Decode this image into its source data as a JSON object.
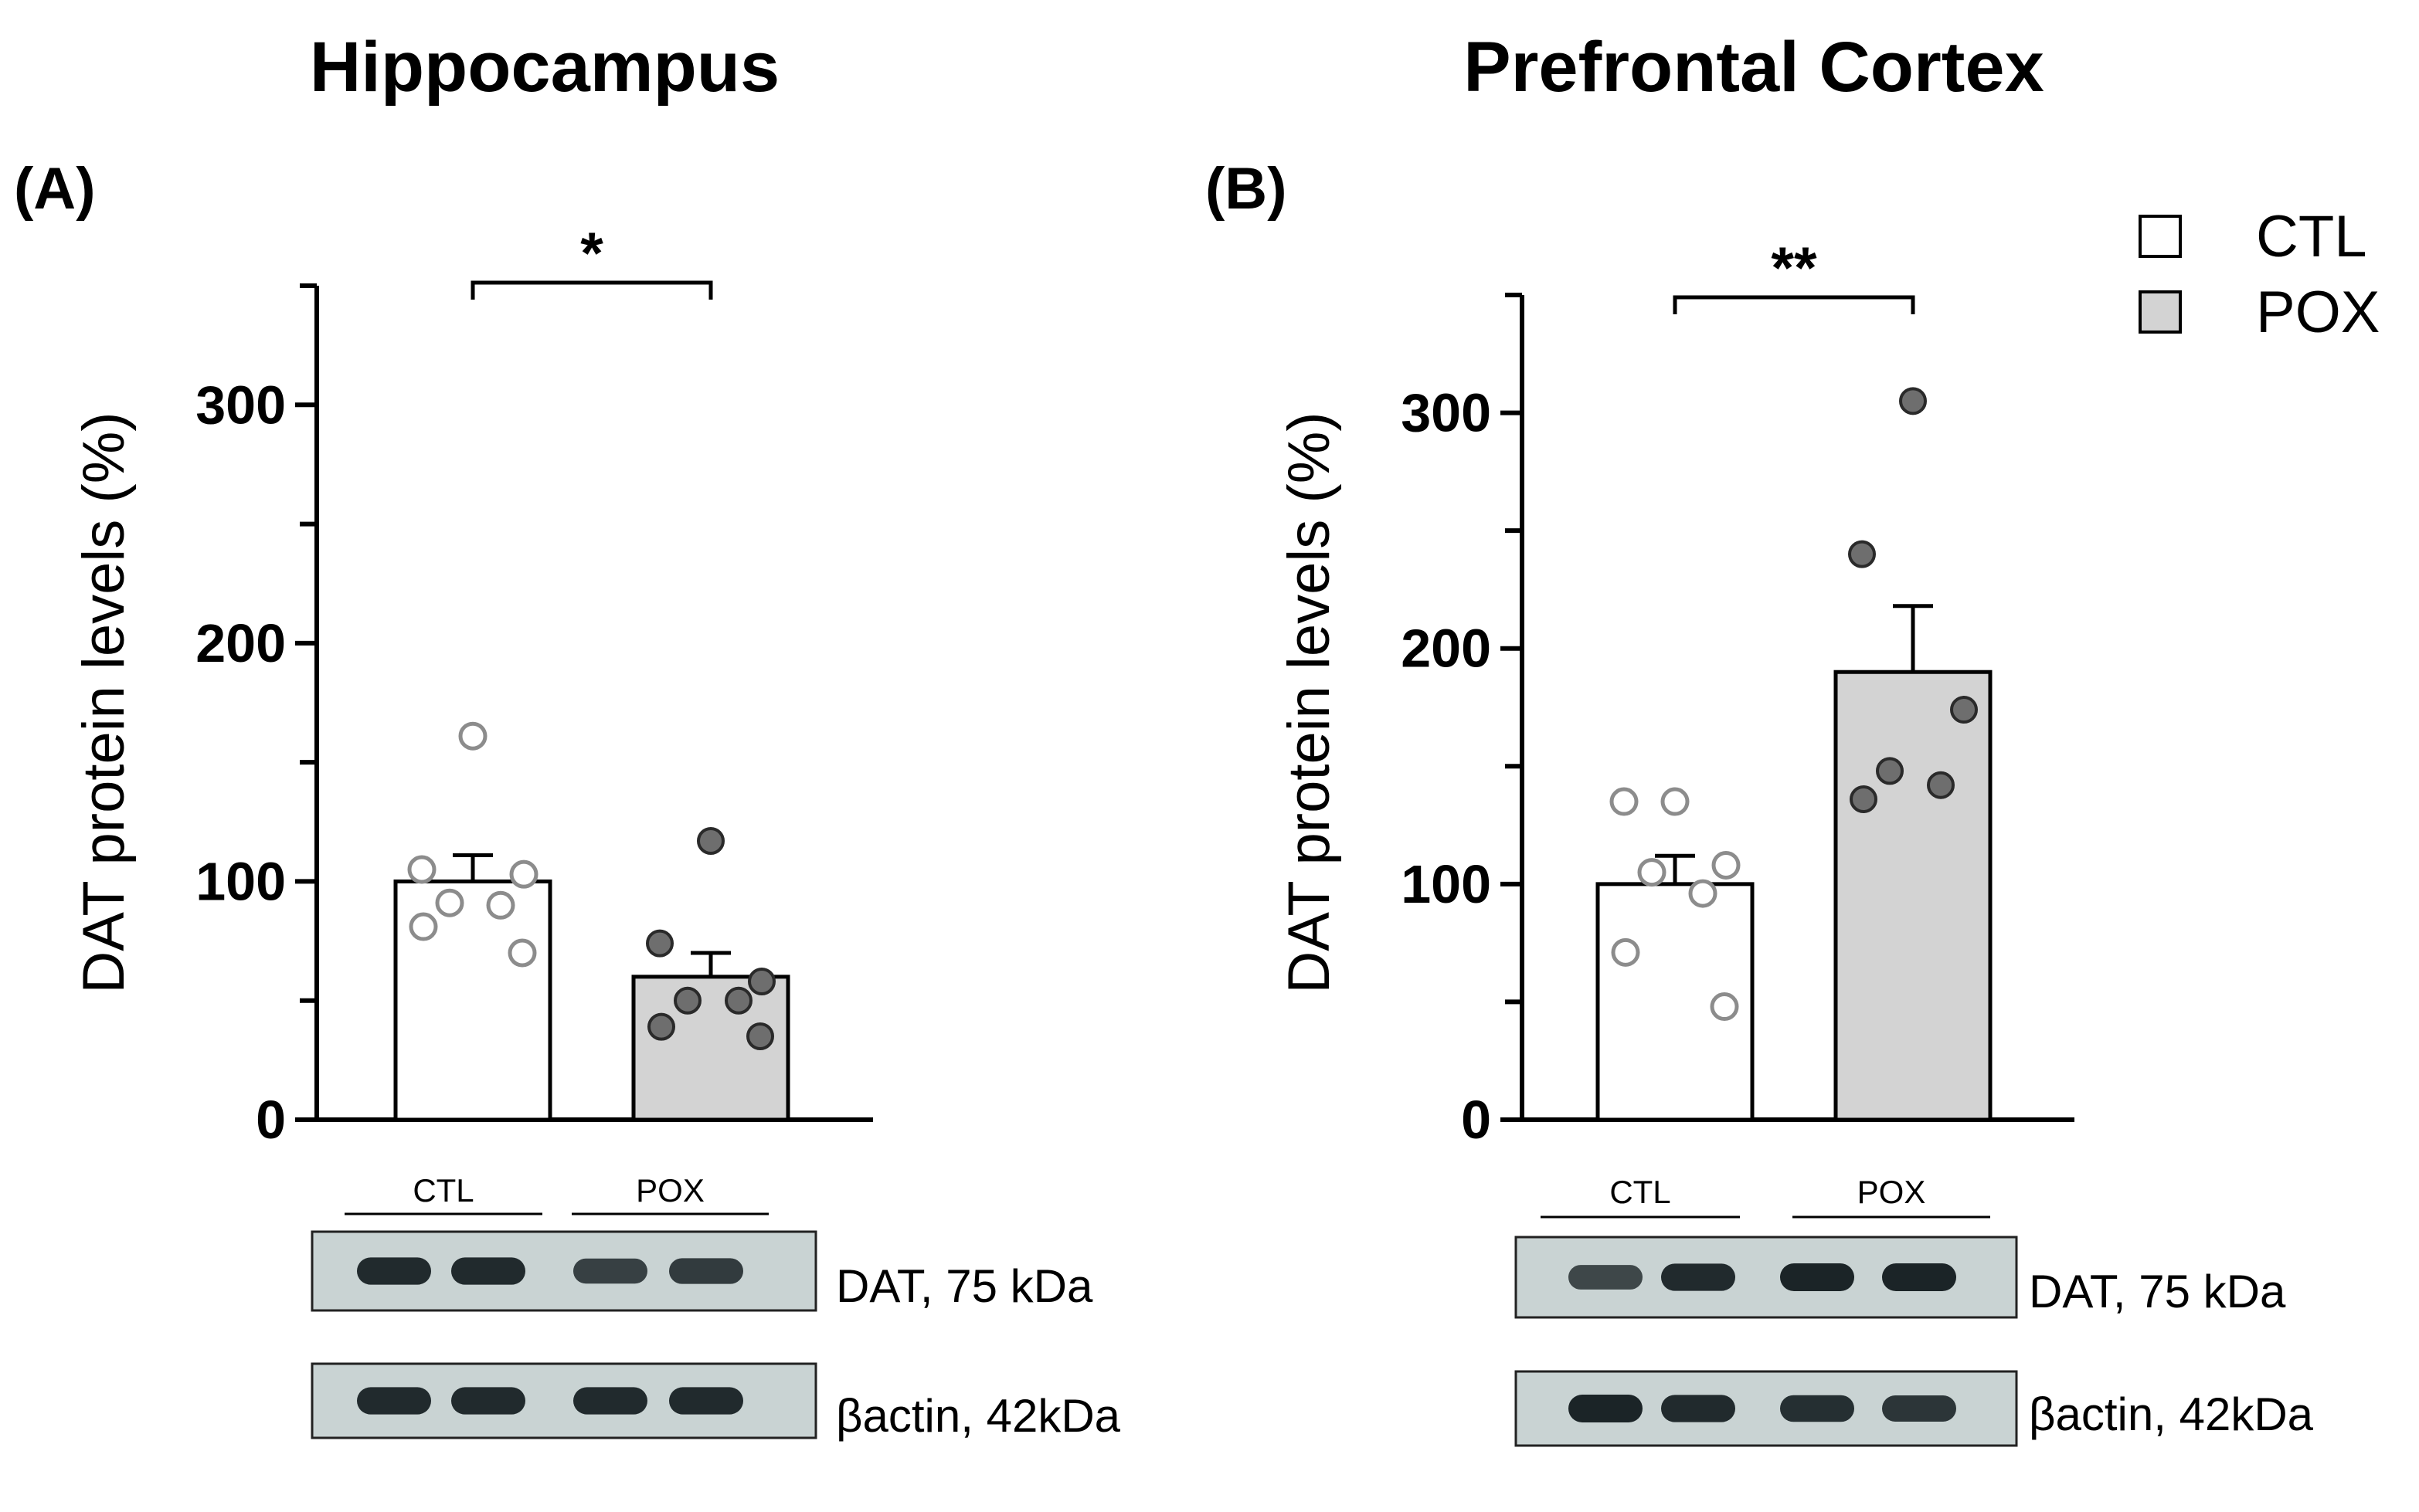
{
  "legend": {
    "items": [
      {
        "label": "CTL",
        "fill": "#ffffff"
      },
      {
        "label": "POX",
        "fill": "#d3d3d3"
      }
    ]
  },
  "colors": {
    "ctl_bar": "#ffffff",
    "pox_bar": "#d3d3d3",
    "ctl_point_stroke": "#8c8c8c",
    "pox_point_fill": "#6e6e6e",
    "axis": "#000000",
    "blot_bg": "#c9d3d3",
    "band": "#1b2427"
  },
  "chart_data": [
    {
      "type": "bar",
      "title": "Hippocampus",
      "panel": "(A)",
      "ylabel": "DAT protein levels (%)",
      "xlabel": "",
      "ylim": [
        0,
        350
      ],
      "yticks": [
        0,
        100,
        200,
        300
      ],
      "categories": [
        "CTL",
        "POX"
      ],
      "series": [
        {
          "name": "CTL",
          "mean": 100,
          "sem": 11,
          "points": [
            161,
            105,
            103,
            91,
            90,
            81,
            70
          ]
        },
        {
          "name": "POX",
          "mean": 60,
          "sem": 10,
          "points": [
            117,
            74,
            58,
            50,
            50,
            39,
            35
          ]
        }
      ],
      "significance": "*",
      "blot": {
        "lane_groups": [
          "CTL",
          "POX"
        ],
        "rows": [
          {
            "label": "DAT, 75 kDa",
            "intensities": [
              0.95,
              0.95,
              0.75,
              0.8
            ]
          },
          {
            "label": "βactin, 42kDa",
            "intensities": [
              0.95,
              0.95,
              0.95,
              0.95
            ]
          }
        ]
      }
    },
    {
      "type": "bar",
      "title": "Prefrontal Cortex",
      "panel": "(B)",
      "ylabel": "DAT protein levels (%)",
      "xlabel": "",
      "ylim": [
        0,
        350
      ],
      "yticks": [
        0,
        100,
        200,
        300
      ],
      "categories": [
        "CTL",
        "POX"
      ],
      "series": [
        {
          "name": "CTL",
          "mean": 100,
          "sem": 12,
          "points": [
            135,
            135,
            108,
            105,
            96,
            71,
            48
          ]
        },
        {
          "name": "POX",
          "mean": 190,
          "sem": 28,
          "points": [
            305,
            240,
            174,
            148,
            142,
            136
          ]
        }
      ],
      "significance": "**",
      "blot": {
        "lane_groups": [
          "CTL",
          "POX"
        ],
        "rows": [
          {
            "label": "DAT, 75 kDa",
            "intensities": [
              0.7,
              0.95,
              1.0,
              1.0
            ]
          },
          {
            "label": "βactin, 42kDa",
            "intensities": [
              1.0,
              0.95,
              0.9,
              0.85
            ]
          }
        ]
      }
    }
  ]
}
